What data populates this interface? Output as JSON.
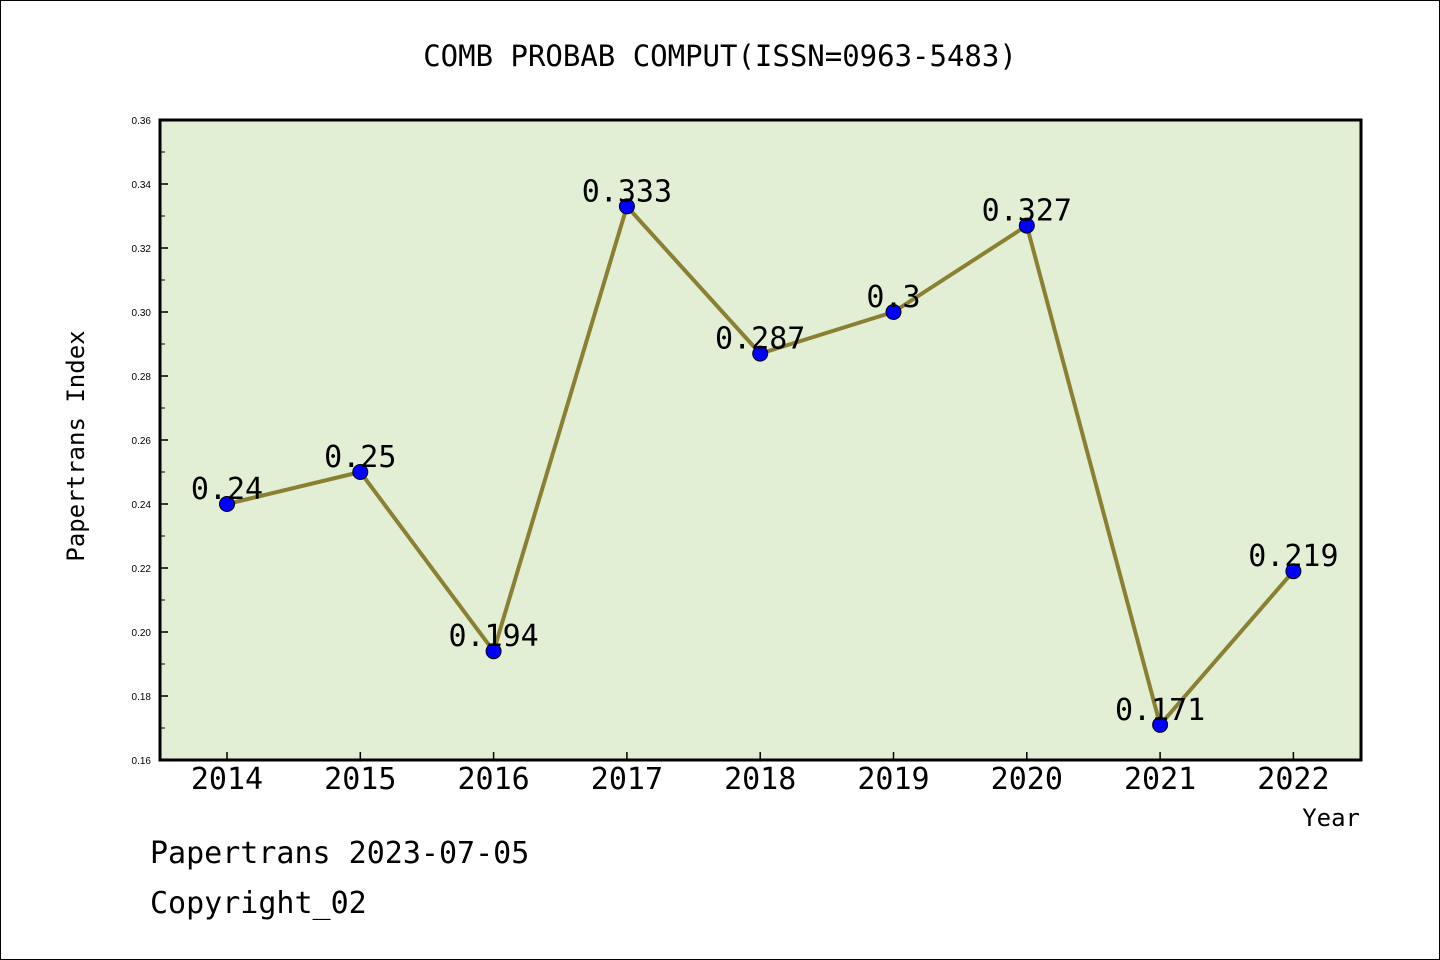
{
  "chart_data": {
    "type": "line",
    "title": "COMB PROBAB COMPUT(ISSN=0963-5483)",
    "xlabel": "Year",
    "ylabel": "Papertrans Index",
    "categories": [
      "2014",
      "2015",
      "2016",
      "2017",
      "2018",
      "2019",
      "2020",
      "2021",
      "2022"
    ],
    "values": [
      0.24,
      0.25,
      0.194,
      0.333,
      0.287,
      0.3,
      0.327,
      0.171,
      0.219
    ],
    "data_labels": [
      "0.24",
      "0.25",
      "0.194",
      "0.333",
      "0.287",
      "0.3",
      "0.327",
      "0.171",
      "0.219"
    ],
    "ylim": [
      0.16,
      0.36
    ],
    "yticks": [
      "0.16",
      "0.18",
      "0.20",
      "0.22",
      "0.24",
      "0.26",
      "0.28",
      "0.30",
      "0.32",
      "0.34",
      "0.36"
    ],
    "grid": false,
    "colors": {
      "plot_background": "#e2efd5",
      "line": "#8b8032",
      "marker": "#0000ff"
    }
  },
  "footer": {
    "line1": "Papertrans 2023-07-05",
    "line2": "Copyright_02"
  }
}
